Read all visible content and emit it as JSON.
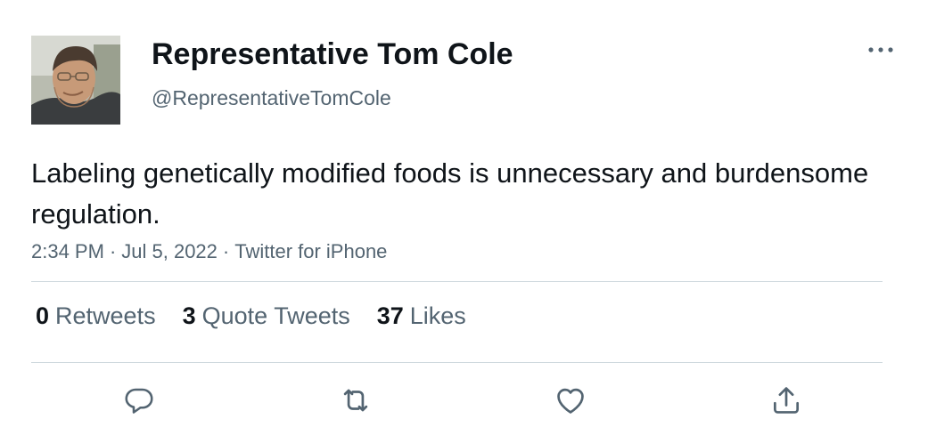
{
  "tweet": {
    "author": {
      "display_name": "Representative Tom Cole",
      "handle": "@RepresentativeTomCole",
      "avatar_icon": "profile-photo"
    },
    "text": "Labeling genetically modified foods is unnecessary and burdensome regulation.",
    "meta": {
      "time": "2:34 PM",
      "date": "Jul 5, 2022",
      "source": "Twitter for iPhone",
      "separator": "·"
    },
    "stats": {
      "retweets": {
        "count": "0",
        "label": "Retweets"
      },
      "quote_tweets": {
        "count": "3",
        "label": "Quote Tweets"
      },
      "likes": {
        "count": "37",
        "label": "Likes"
      }
    },
    "actions": [
      "reply-icon",
      "retweet-icon",
      "like-icon",
      "share-icon"
    ],
    "more_icon": "more-icon"
  },
  "colors": {
    "text_primary": "#0f1419",
    "text_secondary": "#536471",
    "divider": "#cfd9de",
    "background": "#ffffff"
  }
}
